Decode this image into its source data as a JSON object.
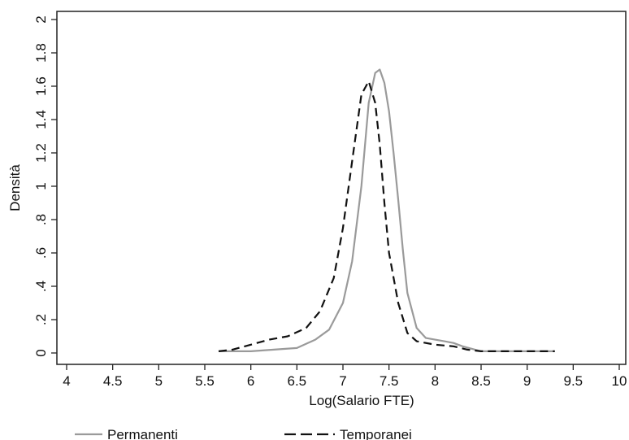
{
  "chart_data": {
    "type": "line",
    "title": "",
    "xlabel": "Log(Salario FTE)",
    "ylabel": "Densità",
    "xlim": [
      4,
      10
    ],
    "ylim": [
      0,
      2
    ],
    "x_ticks": [
      4,
      4.5,
      5,
      5.5,
      6,
      6.5,
      7,
      7.5,
      8,
      8.5,
      9,
      9.5,
      10
    ],
    "x_tick_labels": [
      "4",
      "4.5",
      "5",
      "5.5",
      "6",
      "6.5",
      "7",
      "7.5",
      "8",
      "8.5",
      "9",
      "9.5",
      "10"
    ],
    "y_ticks": [
      0,
      0.2,
      0.4,
      0.6,
      0.8,
      1,
      1.2,
      1.4,
      1.6,
      1.8,
      2
    ],
    "y_tick_labels": [
      "0",
      ".2",
      ".4",
      ".6",
      ".8",
      "1",
      "1.2",
      "1.4",
      "1.6",
      "1.8",
      "2"
    ],
    "grid": false,
    "legend_position": "bottom",
    "series": [
      {
        "name": "Permanenti",
        "style": "solid",
        "color": "#9a9a9a",
        "x": [
          5.65,
          6.0,
          6.5,
          6.7,
          6.85,
          7.0,
          7.1,
          7.2,
          7.28,
          7.35,
          7.4,
          7.45,
          7.5,
          7.55,
          7.6,
          7.65,
          7.7,
          7.8,
          7.9,
          8.0,
          8.1,
          8.2,
          8.3,
          8.5,
          9.0,
          9.3
        ],
        "y": [
          0.01,
          0.01,
          0.03,
          0.08,
          0.14,
          0.3,
          0.55,
          1.0,
          1.5,
          1.68,
          1.7,
          1.62,
          1.45,
          1.2,
          0.92,
          0.62,
          0.36,
          0.15,
          0.09,
          0.08,
          0.07,
          0.06,
          0.04,
          0.01,
          0.01,
          0.01
        ]
      },
      {
        "name": "Temporanei",
        "style": "dashed",
        "color": "#111111",
        "x": [
          5.65,
          5.8,
          6.0,
          6.2,
          6.4,
          6.6,
          6.75,
          6.9,
          7.0,
          7.1,
          7.2,
          7.28,
          7.35,
          7.4,
          7.45,
          7.5,
          7.6,
          7.7,
          7.8,
          8.0,
          8.2,
          8.35,
          8.5,
          9.0,
          9.3
        ],
        "y": [
          0.01,
          0.02,
          0.05,
          0.08,
          0.1,
          0.15,
          0.25,
          0.45,
          0.75,
          1.15,
          1.55,
          1.63,
          1.5,
          1.25,
          0.9,
          0.6,
          0.3,
          0.12,
          0.07,
          0.05,
          0.04,
          0.02,
          0.01,
          0.01,
          0.01
        ]
      }
    ]
  }
}
